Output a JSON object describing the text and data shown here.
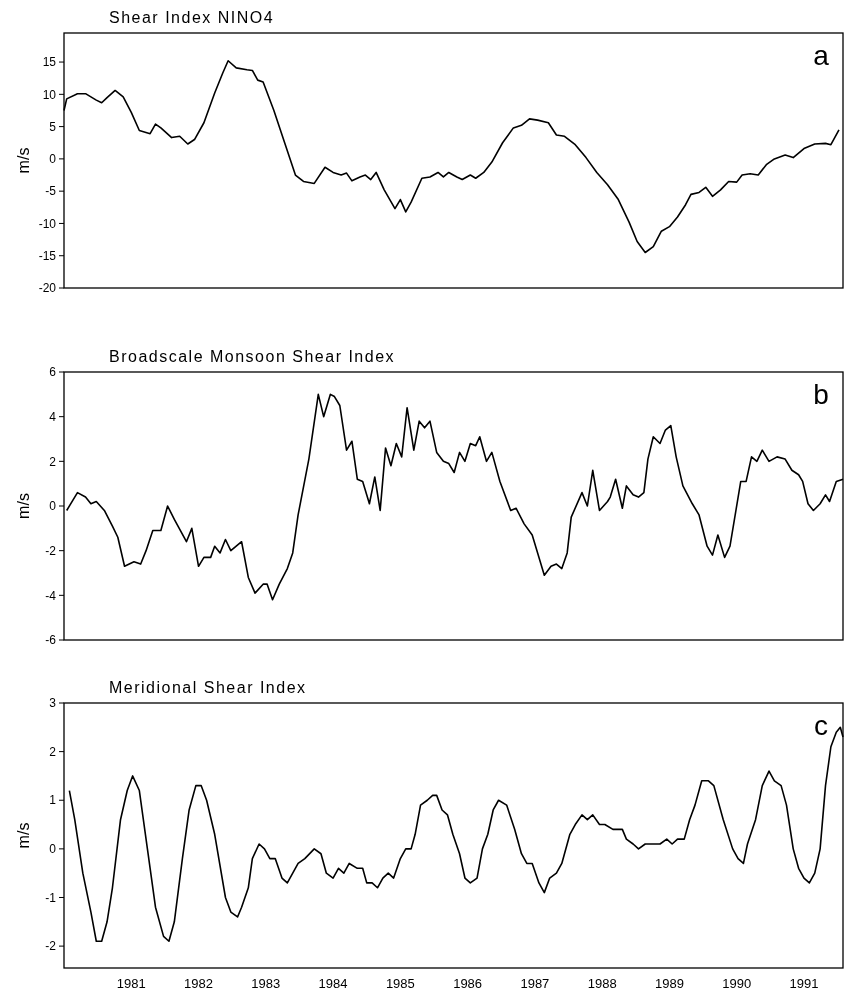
{
  "chart_data": [
    {
      "type": "line",
      "title": "Shear Index  NINO4",
      "ylabel": "m/s",
      "annotations": [
        "a"
      ],
      "xlim": [
        1980,
        1991.58
      ],
      "ylim": [
        -20,
        19.5
      ],
      "yticks": [
        -20,
        -15,
        -10,
        -5,
        0,
        5,
        10,
        15
      ],
      "tick_labels": "y",
      "grid": false,
      "marker": "none",
      "line_style": "solid",
      "series": [
        {
          "color": "#000000",
          "x": [
            1980.0,
            1980.04,
            1980.2,
            1980.32,
            1980.48,
            1980.56,
            1980.64,
            1980.76,
            1980.88,
            1981.0,
            1981.12,
            1981.28,
            1981.36,
            1981.44,
            1981.6,
            1981.72,
            1981.84,
            1981.94,
            1982.08,
            1982.24,
            1982.36,
            1982.44,
            1982.56,
            1982.72,
            1982.8,
            1982.88,
            1982.96,
            1983.12,
            1983.28,
            1983.44,
            1983.56,
            1983.72,
            1983.88,
            1984.0,
            1984.12,
            1984.2,
            1984.28,
            1984.4,
            1984.48,
            1984.56,
            1984.64,
            1984.76,
            1984.92,
            1985.0,
            1985.08,
            1985.16,
            1985.32,
            1985.44,
            1985.56,
            1985.64,
            1985.72,
            1985.84,
            1985.92,
            1986.04,
            1986.12,
            1986.24,
            1986.36,
            1986.52,
            1986.68,
            1986.8,
            1986.92,
            1987.04,
            1987.2,
            1987.32,
            1987.44,
            1987.6,
            1987.76,
            1987.92,
            1988.08,
            1988.24,
            1988.4,
            1988.52,
            1988.64,
            1988.76,
            1988.88,
            1989.0,
            1989.12,
            1989.24,
            1989.32,
            1989.44,
            1989.54,
            1989.64,
            1989.76,
            1989.88,
            1990.0,
            1990.08,
            1990.2,
            1990.32,
            1990.44,
            1990.56,
            1990.72,
            1990.84,
            1991.0,
            1991.16,
            1991.32,
            1991.4,
            1991.52
          ],
          "values": [
            7.5,
            9.3,
            10.1,
            10.1,
            9.1,
            8.7,
            9.5,
            10.6,
            9.6,
            7.2,
            4.4,
            3.9,
            5.4,
            4.8,
            3.3,
            3.5,
            2.3,
            3.0,
            5.6,
            10.2,
            13.3,
            15.2,
            14.1,
            13.8,
            13.7,
            12.2,
            11.9,
            7.5,
            2.5,
            -2.5,
            -3.5,
            -3.8,
            -1.3,
            -2.1,
            -2.5,
            -2.2,
            -3.4,
            -2.8,
            -2.5,
            -3.2,
            -2.1,
            -4.8,
            -7.7,
            -6.3,
            -8.2,
            -6.7,
            -3.0,
            -2.8,
            -2.1,
            -2.8,
            -2.1,
            -2.8,
            -3.2,
            -2.5,
            -3.0,
            -2.1,
            -0.5,
            2.5,
            4.8,
            5.2,
            6.2,
            6.0,
            5.6,
            3.7,
            3.5,
            2.2,
            0.2,
            -2.1,
            -4.0,
            -6.3,
            -9.8,
            -12.8,
            -14.5,
            -13.6,
            -11.2,
            -10.5,
            -9.0,
            -7.1,
            -5.5,
            -5.2,
            -4.4,
            -5.8,
            -4.8,
            -3.5,
            -3.6,
            -2.5,
            -2.3,
            -2.5,
            -0.9,
            0,
            0.6,
            0.2,
            1.6,
            2.3,
            2.4,
            2.2,
            4.5
          ]
        }
      ]
    },
    {
      "type": "line",
      "title": "Broadscale Monsoon Shear Index",
      "ylabel": "m/s",
      "annotations": [
        "b"
      ],
      "xlim": [
        1980,
        1991.58
      ],
      "ylim": [
        -6,
        6
      ],
      "yticks": [
        -6,
        -4,
        -2,
        0,
        2,
        4,
        6
      ],
      "tick_labels": "y",
      "grid": false,
      "marker": "none",
      "line_style": "solid",
      "series": [
        {
          "color": "#000000",
          "x": [
            1980.04,
            1980.2,
            1980.32,
            1980.4,
            1980.48,
            1980.6,
            1980.72,
            1980.8,
            1980.9,
            1981.04,
            1981.14,
            1981.22,
            1981.32,
            1981.44,
            1981.54,
            1981.64,
            1981.82,
            1981.9,
            1982.0,
            1982.08,
            1982.18,
            1982.24,
            1982.32,
            1982.4,
            1982.48,
            1982.64,
            1982.74,
            1982.84,
            1982.96,
            1983.02,
            1983.1,
            1983.2,
            1983.32,
            1983.4,
            1983.48,
            1983.64,
            1983.78,
            1983.86,
            1983.96,
            1984.02,
            1984.1,
            1984.2,
            1984.28,
            1984.36,
            1984.44,
            1984.54,
            1984.62,
            1984.7,
            1984.78,
            1984.86,
            1984.94,
            1985.02,
            1985.1,
            1985.2,
            1985.28,
            1985.36,
            1985.44,
            1985.54,
            1985.64,
            1985.72,
            1985.8,
            1985.88,
            1985.96,
            1986.04,
            1986.12,
            1986.18,
            1986.28,
            1986.36,
            1986.48,
            1986.64,
            1986.72,
            1986.84,
            1986.96,
            1987.14,
            1987.24,
            1987.32,
            1987.4,
            1987.48,
            1987.54,
            1987.7,
            1987.78,
            1987.86,
            1987.96,
            1988.08,
            1988.12,
            1988.2,
            1988.3,
            1988.36,
            1988.46,
            1988.54,
            1988.62,
            1988.68,
            1988.76,
            1988.86,
            1988.94,
            1989.02,
            1989.1,
            1989.2,
            1989.34,
            1989.44,
            1989.56,
            1989.64,
            1989.72,
            1989.82,
            1989.9,
            1990.06,
            1990.14,
            1990.22,
            1990.3,
            1990.38,
            1990.48,
            1990.6,
            1990.72,
            1990.82,
            1990.92,
            1990.98,
            1991.06,
            1991.14,
            1991.24,
            1991.32,
            1991.38,
            1991.48,
            1991.58
          ],
          "values": [
            -0.2,
            0.6,
            0.4,
            0.1,
            0.2,
            -0.2,
            -0.9,
            -1.4,
            -2.7,
            -2.5,
            -2.6,
            -2.0,
            -1.1,
            -1.1,
            0,
            -0.6,
            -1.6,
            -1.0,
            -2.7,
            -2.3,
            -2.3,
            -1.8,
            -2.1,
            -1.5,
            -2.0,
            -1.6,
            -3.2,
            -3.9,
            -3.5,
            -3.5,
            -4.2,
            -3.5,
            -2.8,
            -2.1,
            -0.4,
            2.1,
            5.0,
            4.0,
            5.0,
            4.9,
            4.5,
            2.5,
            2.9,
            1.2,
            1.1,
            0.1,
            1.3,
            -0.2,
            2.6,
            1.8,
            2.8,
            2.2,
            4.4,
            2.5,
            3.8,
            3.5,
            3.8,
            2.4,
            2.0,
            1.9,
            1.5,
            2.4,
            2.0,
            2.8,
            2.7,
            3.1,
            2.0,
            2.4,
            1.1,
            -0.2,
            -0.1,
            -0.8,
            -1.3,
            -3.1,
            -2.7,
            -2.6,
            -2.8,
            -2.1,
            -0.5,
            0.6,
            0,
            1.6,
            -0.2,
            0.2,
            0.4,
            1.2,
            -0.1,
            0.9,
            0.5,
            0.4,
            0.6,
            2.1,
            3.1,
            2.8,
            3.4,
            3.6,
            2.2,
            0.9,
            0.1,
            -0.4,
            -1.8,
            -2.2,
            -1.3,
            -2.3,
            -1.8,
            1.1,
            1.1,
            2.2,
            2.0,
            2.5,
            2.0,
            2.2,
            2.1,
            1.6,
            1.4,
            1.1,
            0.1,
            -0.2,
            0.1,
            0.5,
            0.2,
            1.1,
            1.2
          ]
        }
      ]
    },
    {
      "type": "line",
      "title": "Meridional Shear Index",
      "ylabel": "m/s",
      "annotations": [
        "c"
      ],
      "xlim": [
        1980,
        1991.58
      ],
      "xticks": [
        1981,
        1982,
        1983,
        1984,
        1985,
        1986,
        1987,
        1988,
        1989,
        1990,
        1991
      ],
      "ylim": [
        -2.45,
        3
      ],
      "yticks": [
        -2,
        -1,
        0,
        1,
        2,
        3
      ],
      "grid": false,
      "marker": "none",
      "line_style": "solid",
      "series": [
        {
          "color": "#000000",
          "x": [
            1980.08,
            1980.16,
            1980.28,
            1980.4,
            1980.48,
            1980.56,
            1980.64,
            1980.72,
            1980.84,
            1980.94,
            1981.02,
            1981.12,
            1981.24,
            1981.36,
            1981.48,
            1981.56,
            1981.64,
            1981.76,
            1981.86,
            1981.96,
            1982.04,
            1982.12,
            1982.24,
            1982.4,
            1982.48,
            1982.58,
            1982.64,
            1982.74,
            1982.8,
            1982.9,
            1982.98,
            1983.06,
            1983.14,
            1983.24,
            1983.32,
            1983.48,
            1983.58,
            1983.72,
            1983.82,
            1983.9,
            1984.0,
            1984.08,
            1984.16,
            1984.24,
            1984.36,
            1984.44,
            1984.5,
            1984.58,
            1984.66,
            1984.74,
            1984.82,
            1984.9,
            1985.0,
            1985.08,
            1985.16,
            1985.22,
            1985.3,
            1985.4,
            1985.48,
            1985.54,
            1985.62,
            1985.7,
            1985.78,
            1985.88,
            1985.96,
            1986.04,
            1986.14,
            1986.22,
            1986.3,
            1986.38,
            1986.46,
            1986.58,
            1986.7,
            1986.8,
            1986.88,
            1986.96,
            1987.06,
            1987.14,
            1987.22,
            1987.32,
            1987.4,
            1987.52,
            1987.6,
            1987.7,
            1987.78,
            1987.86,
            1987.96,
            1988.04,
            1988.16,
            1988.3,
            1988.36,
            1988.46,
            1988.54,
            1988.64,
            1988.76,
            1988.86,
            1988.96,
            1989.04,
            1989.12,
            1989.22,
            1989.3,
            1989.38,
            1989.48,
            1989.58,
            1989.66,
            1989.8,
            1989.94,
            1990.02,
            1990.1,
            1990.16,
            1990.28,
            1990.38,
            1990.48,
            1990.56,
            1990.66,
            1990.74,
            1990.84,
            1990.92,
            1991.0,
            1991.08,
            1991.16,
            1991.24,
            1991.32,
            1991.4,
            1991.48,
            1991.54,
            1991.58
          ],
          "values": [
            1.2,
            0.6,
            -0.5,
            -1.3,
            -1.9,
            -1.9,
            -1.5,
            -0.8,
            0.6,
            1.2,
            1.5,
            1.2,
            0,
            -1.2,
            -1.8,
            -1.9,
            -1.5,
            -0.2,
            0.8,
            1.3,
            1.3,
            1.0,
            0.3,
            -1.0,
            -1.3,
            -1.4,
            -1.2,
            -0.8,
            -0.2,
            0.1,
            0,
            -0.2,
            -0.2,
            -0.6,
            -0.7,
            -0.3,
            -0.2,
            0,
            -0.1,
            -0.5,
            -0.6,
            -0.4,
            -0.5,
            -0.3,
            -0.4,
            -0.4,
            -0.7,
            -0.7,
            -0.8,
            -0.6,
            -0.5,
            -0.6,
            -0.2,
            0,
            0,
            0.3,
            0.9,
            1.0,
            1.1,
            1.1,
            0.8,
            0.7,
            0.3,
            -0.1,
            -0.6,
            -0.7,
            -0.6,
            0,
            0.3,
            0.8,
            1.0,
            0.9,
            0.4,
            -0.1,
            -0.3,
            -0.3,
            -0.7,
            -0.9,
            -0.6,
            -0.5,
            -0.3,
            0.3,
            0.5,
            0.7,
            0.6,
            0.7,
            0.5,
            0.5,
            0.4,
            0.4,
            0.2,
            0.1,
            0,
            0.1,
            0.1,
            0.1,
            0.2,
            0.1,
            0.2,
            0.2,
            0.6,
            0.9,
            1.4,
            1.4,
            1.3,
            0.6,
            0,
            -0.2,
            -0.3,
            0.1,
            0.6,
            1.3,
            1.6,
            1.4,
            1.3,
            0.9,
            0,
            -0.4,
            -0.6,
            -0.7,
            -0.5,
            0,
            1.3,
            2.1,
            2.4,
            2.5,
            2.3
          ]
        }
      ]
    }
  ]
}
